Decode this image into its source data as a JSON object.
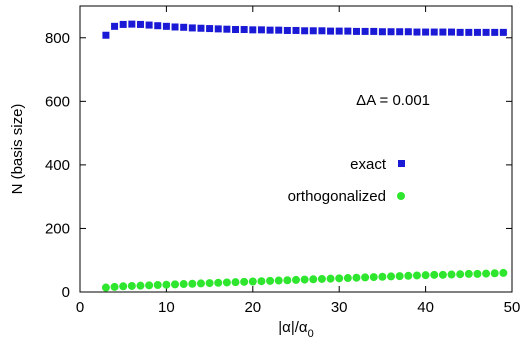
{
  "chart_data": {
    "type": "scatter",
    "xlabel": "|α|/α",
    "xlabel_sub": "0",
    "ylabel": "N (basis size)",
    "xlim": [
      0,
      50
    ],
    "ylim": [
      0,
      900
    ],
    "x_ticks": [
      0,
      10,
      20,
      30,
      40,
      50
    ],
    "y_ticks": [
      0,
      200,
      400,
      600,
      800
    ],
    "annotation": "ΔA = 0.001",
    "legend_position": "right-middle",
    "series": [
      {
        "name": "exact",
        "marker": "square",
        "color": "#1a1ad6",
        "x": [
          3,
          4,
          5,
          6,
          7,
          8,
          9,
          10,
          11,
          12,
          13,
          14,
          15,
          16,
          17,
          18,
          19,
          20,
          21,
          22,
          23,
          24,
          25,
          26,
          27,
          28,
          29,
          30,
          31,
          32,
          33,
          34,
          35,
          36,
          37,
          38,
          39,
          40,
          41,
          42,
          43,
          44,
          45,
          46,
          47,
          48,
          49
        ],
        "y": [
          808,
          836,
          842,
          843,
          842,
          840,
          838,
          836,
          834,
          833,
          831,
          830,
          829,
          828,
          827,
          826,
          826,
          825,
          825,
          824,
          824,
          823,
          823,
          822,
          822,
          822,
          821,
          821,
          821,
          820,
          820,
          820,
          819,
          819,
          819,
          819,
          818,
          818,
          818,
          818,
          818,
          817,
          817,
          817,
          817,
          817,
          817
        ]
      },
      {
        "name": "orthogonalized",
        "marker": "circle",
        "color": "#2ee62e",
        "x": [
          3,
          4,
          5,
          6,
          7,
          8,
          9,
          10,
          11,
          12,
          13,
          14,
          15,
          16,
          17,
          18,
          19,
          20,
          21,
          22,
          23,
          24,
          25,
          26,
          27,
          28,
          29,
          30,
          31,
          32,
          33,
          34,
          35,
          36,
          37,
          38,
          39,
          40,
          41,
          42,
          43,
          44,
          45,
          46,
          47,
          48,
          49
        ],
        "y": [
          14,
          16,
          18,
          19,
          20,
          21,
          22,
          23,
          24,
          25,
          26,
          27,
          28,
          29,
          30,
          31,
          32,
          33,
          34,
          35,
          36,
          37,
          38,
          39,
          40,
          41,
          42,
          43,
          44,
          45,
          46,
          47,
          48,
          49,
          50,
          51,
          52,
          53,
          54,
          54,
          55,
          56,
          57,
          57,
          58,
          59,
          60
        ]
      }
    ]
  }
}
